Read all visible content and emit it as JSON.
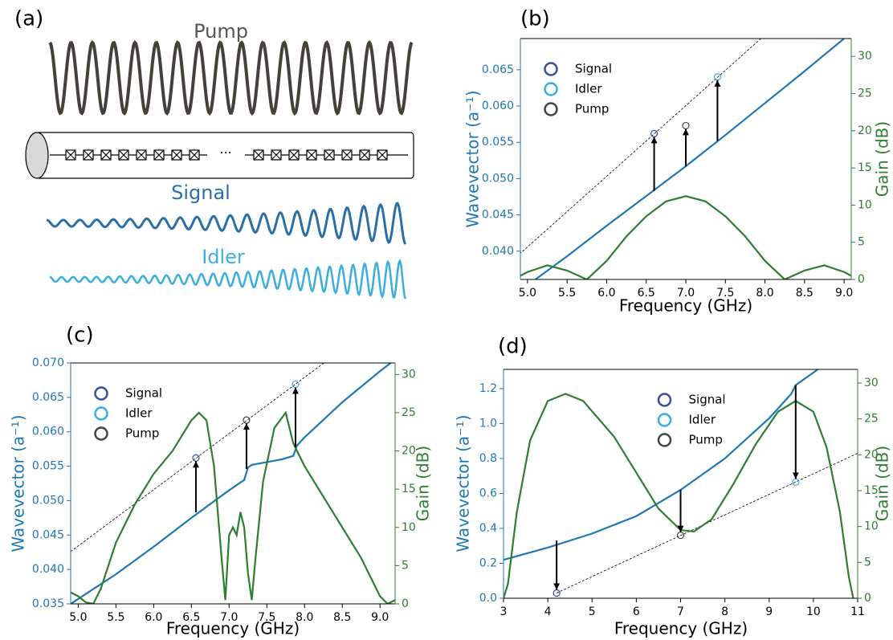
{
  "panel_a": {
    "label": "(a)",
    "pump": "Pump",
    "signal": "Signal",
    "idler": "Idler",
    "ellipsis": "···"
  },
  "chart_data": [
    {
      "type": "line",
      "panel_label": "(b)",
      "x_label": "Frequency (GHz)",
      "y_label": "Wavevector (a⁻¹)",
      "y2_label": "Gain (dB)",
      "xlim": [
        4.91,
        9.09
      ],
      "ylim": [
        0.0361,
        0.0693
      ],
      "y2lim": [
        0,
        32.4
      ],
      "xticks": [
        {
          "value": 5,
          "label": "5.0"
        },
        5.5,
        {
          "value": 6,
          "label": "6.0"
        },
        6.5,
        {
          "value": 7,
          "label": "7.0"
        },
        7.5,
        {
          "value": 8,
          "label": "8.0"
        },
        8.5,
        {
          "value": 9,
          "label": "9.0"
        }
      ],
      "yticks": [
        {
          "value": 0.04,
          "label": "0.040"
        },
        {
          "value": 0.045,
          "label": "0.045"
        },
        {
          "value": 0.05,
          "label": "0.050"
        },
        {
          "value": 0.055,
          "label": "0.055"
        },
        {
          "value": 0.06,
          "label": "0.060"
        },
        {
          "value": 0.065,
          "label": "0.065"
        }
      ],
      "y2ticks": [
        0,
        5,
        10,
        15,
        20,
        25,
        30
      ],
      "legend": "upper left",
      "series": [
        {
          "color": "#1f77b4",
          "x": [
            5.1,
            5.5,
            6.0,
            6.5,
            7.0,
            7.5,
            8.0,
            8.5,
            9.0
          ],
          "values": [
            0.0361,
            0.0393,
            0.0435,
            0.0476,
            0.0517,
            0.056,
            0.0604,
            0.0648,
            0.0693
          ]
        },
        {
          "color": "#000000",
          "style": "dashed",
          "x": [
            4.9,
            9.1
          ],
          "values": [
            0.0396,
            0.0805
          ]
        },
        {
          "color": "#2e7d32",
          "axis": "y2",
          "x": [
            4.91,
            5.0,
            5.25,
            5.5,
            5.75,
            6.0,
            6.25,
            6.5,
            6.75,
            7.0,
            7.25,
            7.5,
            7.75,
            8.0,
            8.25,
            8.5,
            8.75,
            9.0,
            9.09
          ],
          "values": [
            0.5,
            1.0,
            1.9,
            1.2,
            0,
            2.5,
            5.8,
            8.5,
            10.5,
            11.2,
            10.5,
            8.5,
            5.8,
            2.5,
            0,
            1.2,
            1.9,
            1.0,
            0.5
          ]
        },
        {
          "name": "Signal",
          "color": "#3b4d9c",
          "marker": "circle",
          "x": [
            6.6
          ],
          "values": [
            0.0562
          ]
        },
        {
          "name": "Idler",
          "color": "#36aee0",
          "marker": "circle",
          "x": [
            7.4
          ],
          "values": [
            0.064
          ]
        },
        {
          "name": "Pump",
          "color": "#444444",
          "marker": "circle",
          "x": [
            7.0
          ],
          "values": [
            0.0573
          ]
        }
      ],
      "arrows": {
        "x": [
          6.6,
          7.0,
          7.4
        ],
        "start": [
          0.0483,
          0.0517,
          0.0552
        ],
        "end": [
          0.0562,
          0.0573,
          0.064
        ]
      }
    },
    {
      "type": "line",
      "panel_label": "(c)",
      "x_label": "Frequency (GHz)",
      "y_label": "Wavevector (a⁻¹)",
      "y2_label": "Gain (dB)",
      "xlim": [
        4.9,
        9.2
      ],
      "ylim": [
        0.035,
        0.07
      ],
      "y2lim": [
        0,
        31.5
      ],
      "xticks": [
        {
          "value": 5,
          "label": "5.0"
        },
        5.5,
        {
          "value": 6,
          "label": "6.0"
        },
        6.5,
        {
          "value": 7,
          "label": "7.0"
        },
        7.5,
        {
          "value": 8,
          "label": "8.0"
        },
        8.5,
        {
          "value": 9,
          "label": "9.0"
        }
      ],
      "yticks": [
        {
          "value": 0.035,
          "label": "0.035"
        },
        {
          "value": 0.04,
          "label": "0.040"
        },
        {
          "value": 0.045,
          "label": "0.045"
        },
        {
          "value": 0.05,
          "label": "0.050"
        },
        {
          "value": 0.055,
          "label": "0.055"
        },
        {
          "value": 0.06,
          "label": "0.060"
        },
        {
          "value": 0.065,
          "label": "0.065"
        },
        {
          "value": 0.07,
          "label": "0.070"
        }
      ],
      "y2ticks": [
        0,
        5,
        10,
        15,
        20,
        25,
        30
      ],
      "legend": "upper left",
      "series": [
        {
          "color": "#1f77b4",
          "x": [
            4.9,
            5.5,
            6.0,
            6.5,
            7.0,
            7.2,
            7.25,
            7.3,
            7.5,
            7.7,
            7.85,
            7.9,
            8.0,
            8.5,
            9.0,
            9.2
          ],
          "values": [
            0.035,
            0.0393,
            0.0433,
            0.0475,
            0.0515,
            0.053,
            0.0548,
            0.0552,
            0.0556,
            0.056,
            0.0565,
            0.058,
            0.0592,
            0.0643,
            0.0688,
            0.0705
          ]
        },
        {
          "color": "#000000",
          "style": "dashed",
          "x": [
            4.9,
            9.2
          ],
          "values": [
            0.0426,
            0.0777
          ]
        },
        {
          "color": "#2e7d32",
          "axis": "y2",
          "x": [
            4.9,
            5.0,
            5.1,
            5.2,
            5.3,
            5.5,
            5.75,
            6.0,
            6.25,
            6.5,
            6.6,
            6.7,
            6.8,
            6.9,
            6.95,
            7.0,
            7.05,
            7.1,
            7.15,
            7.2,
            7.25,
            7.3,
            7.35,
            7.45,
            7.6,
            7.75,
            7.85,
            8.0,
            8.25,
            8.5,
            8.75,
            9.0,
            9.1,
            9.2
          ],
          "values": [
            1.5,
            1.0,
            0.2,
            0,
            2,
            8,
            13,
            17,
            20,
            24,
            25,
            24,
            18,
            6,
            0.5,
            9,
            10,
            9,
            12,
            10,
            4,
            0.5,
            6,
            16,
            23,
            25,
            21,
            18,
            14,
            10,
            6,
            1,
            0,
            0.5
          ]
        },
        {
          "name": "Signal",
          "color": "#3b4d9c",
          "marker": "circle",
          "x": [
            6.56
          ],
          "values": [
            0.0562
          ]
        },
        {
          "name": "Idler",
          "color": "#36aee0",
          "marker": "circle",
          "x": [
            7.88
          ],
          "values": [
            0.0669
          ]
        },
        {
          "name": "Pump",
          "color": "#444444",
          "marker": "circle",
          "x": [
            7.23
          ],
          "values": [
            0.0617
          ]
        }
      ],
      "arrows": {
        "x": [
          6.56,
          7.23,
          7.88
        ],
        "start": [
          0.0483,
          0.0546,
          0.0578
        ],
        "end": [
          0.0562,
          0.0617,
          0.0669
        ]
      }
    },
    {
      "type": "line",
      "panel_label": "(d)",
      "x_label": "Frequency (GHz)",
      "y_label": "Wavevector (a⁻¹)",
      "y2_label": "Gain (dB)",
      "xlim": [
        3,
        11
      ],
      "ylim": [
        0,
        1.31
      ],
      "y2lim": [
        0,
        31.9
      ],
      "xticks": [
        3,
        4,
        5,
        6,
        7,
        8,
        9,
        10,
        11
      ],
      "yticks": [
        {
          "value": 0,
          "label": "0.0"
        },
        0.2,
        0.4,
        0.6,
        0.8,
        {
          "value": 1,
          "label": "1.0"
        },
        1.2
      ],
      "y2ticks": [
        0,
        5,
        10,
        15,
        20,
        25,
        30
      ],
      "legend": "upper center",
      "series": [
        {
          "color": "#1f77b4",
          "x": [
            3,
            4,
            5,
            6,
            7,
            8,
            9,
            9.5,
            9.6,
            10.1
          ],
          "values": [
            0.22,
            0.29,
            0.37,
            0.47,
            0.62,
            0.8,
            1.03,
            1.17,
            1.22,
            1.31
          ]
        },
        {
          "color": "#000000",
          "style": "dashed",
          "x": [
            4.2,
            11
          ],
          "values": [
            0.03,
            0.83
          ]
        },
        {
          "color": "#2e7d32",
          "axis": "y2",
          "x": [
            3,
            3.1,
            3.3,
            3.6,
            4.0,
            4.4,
            4.8,
            5.5,
            6.0,
            6.5,
            7.0,
            7.3,
            7.7,
            8.2,
            8.7,
            9.2,
            9.6,
            10.0,
            10.3,
            10.6,
            10.8,
            10.9
          ],
          "values": [
            0,
            2,
            12,
            22,
            27.5,
            28.5,
            27.5,
            22.5,
            17.5,
            12.5,
            9.5,
            9.3,
            11,
            16,
            21.5,
            26,
            27.5,
            26,
            21,
            12,
            3,
            0
          ]
        },
        {
          "name": "Signal",
          "color": "#3b4d9c",
          "marker": "circle",
          "x": [
            4.2
          ],
          "values": [
            0.03
          ]
        },
        {
          "name": "Idler",
          "color": "#36aee0",
          "marker": "circle",
          "x": [
            9.6
          ],
          "values": [
            0.665
          ]
        },
        {
          "name": "Pump",
          "color": "#444444",
          "marker": "circle",
          "x": [
            7.0
          ],
          "values": [
            0.36
          ]
        }
      ],
      "arrows": {
        "x": [
          4.2,
          7.0,
          9.6
        ],
        "start": [
          0.33,
          0.62,
          1.22
        ],
        "end": [
          0.03,
          0.36,
          0.665
        ]
      }
    }
  ]
}
